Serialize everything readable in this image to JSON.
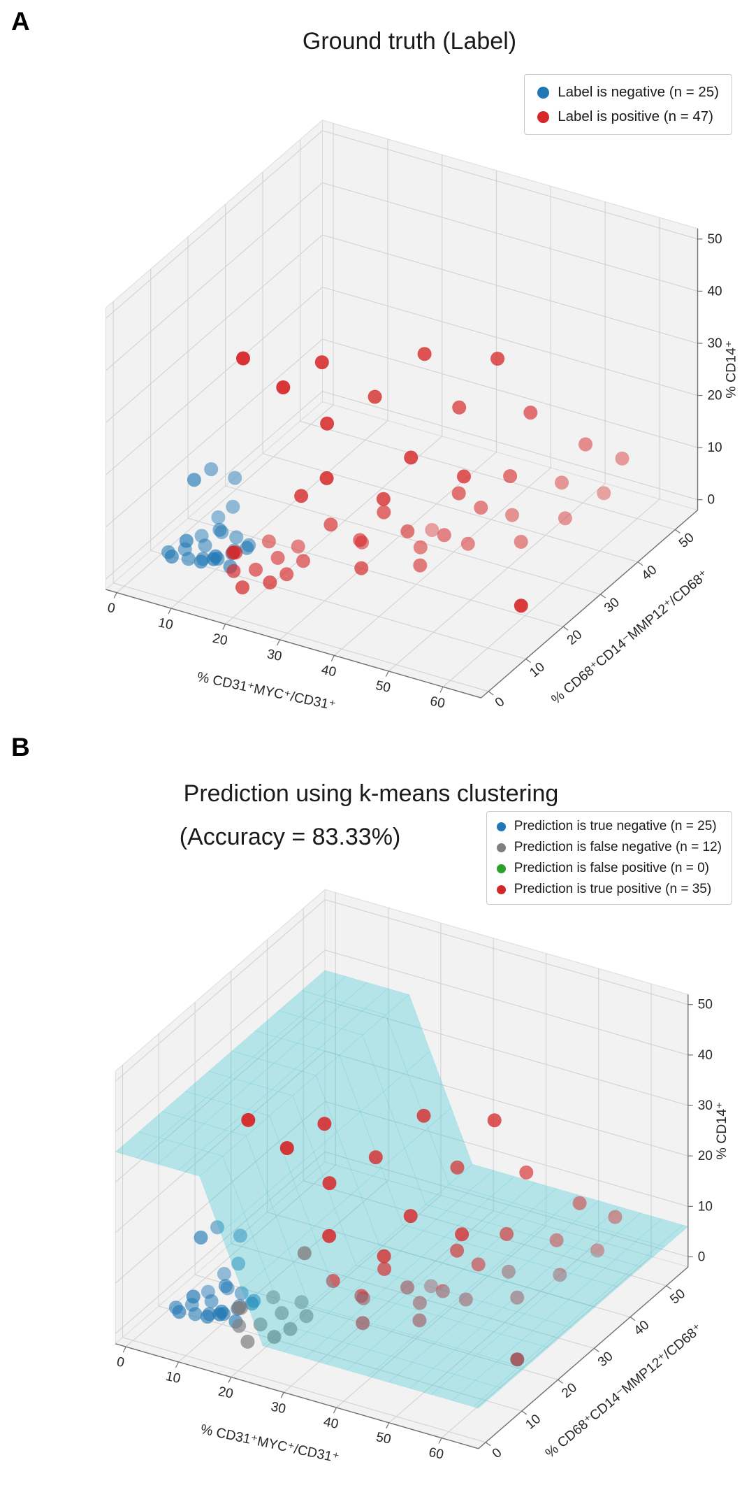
{
  "figure": {
    "background": "#ffffff"
  },
  "panels": [
    {
      "panel_label": "A",
      "title": "Ground truth (Label)",
      "legend": [
        {
          "label": "Label is negative (n = 25)",
          "color": "#1f77b4"
        },
        {
          "label": "Label is positive (n = 47)",
          "color": "#d62728"
        }
      ]
    },
    {
      "panel_label": "B",
      "title": "Prediction using k-means clustering",
      "subtitle": "(Accuracy = 83.33%)",
      "legend": [
        {
          "label": "Prediction is true negative (n = 25)",
          "color": "#1f77b4"
        },
        {
          "label": "Prediction is false negative (n = 12)",
          "color": "#7f7f7f"
        },
        {
          "label": "Prediction is false positive (n = 0)",
          "color": "#2ca02c"
        },
        {
          "label": "Prediction is true positive (n = 35)",
          "color": "#d62728"
        }
      ]
    }
  ],
  "chart_data": {
    "type": "scatter",
    "projection": "3d",
    "axes": {
      "x": {
        "label": "% CD31⁺MYC⁺/CD31⁺",
        "range": [
          -2,
          67
        ],
        "ticks": [
          0,
          10,
          20,
          30,
          40,
          50,
          60
        ]
      },
      "y": {
        "label": "% CD68⁺CD14⁻MMP12⁺/CD68⁺",
        "range": [
          -2,
          56
        ],
        "ticks": [
          0,
          10,
          20,
          30,
          40,
          50
        ]
      },
      "z": {
        "label": "% CD14⁺",
        "range": [
          -2,
          52
        ],
        "ticks": [
          0,
          10,
          20,
          30,
          40,
          50
        ]
      }
    },
    "categories": {
      "neg": "Label is negative",
      "pos": "Label is positive",
      "tn": "Prediction is true negative",
      "fn": "Prediction is false negative",
      "fp": "Prediction is false positive",
      "tp": "Prediction is true positive"
    },
    "counts": {
      "neg": 25,
      "pos": 47,
      "tn": 25,
      "fn": 12,
      "fp": 0,
      "tp": 35
    },
    "accuracy": "83.33%",
    "points": [
      [
        4,
        6,
        2,
        "neg",
        "tn"
      ],
      [
        5,
        9,
        1,
        "neg",
        "tn"
      ],
      [
        6,
        4,
        3,
        "neg",
        "tn"
      ],
      [
        6,
        12,
        2,
        "neg",
        "tn"
      ],
      [
        7,
        7,
        1,
        "neg",
        "tn"
      ],
      [
        7,
        15,
        4,
        "neg",
        "tn"
      ],
      [
        8,
        5,
        6,
        "neg",
        "tn"
      ],
      [
        8,
        10,
        2,
        "neg",
        "tn"
      ],
      [
        9,
        8,
        1,
        "neg",
        "tn"
      ],
      [
        9,
        13,
        3,
        "neg",
        "tn"
      ],
      [
        10,
        6,
        2,
        "neg",
        "tn"
      ],
      [
        10,
        11,
        5,
        "neg",
        "tn"
      ],
      [
        11,
        9,
        1,
        "neg",
        "tn"
      ],
      [
        11,
        14,
        2,
        "neg",
        "tn"
      ],
      [
        12,
        7,
        3,
        "neg",
        "tn"
      ],
      [
        12,
        12,
        1,
        "neg",
        "tn"
      ],
      [
        13,
        10,
        2,
        "neg",
        "tn"
      ],
      [
        13,
        5,
        4,
        "neg",
        "tn"
      ],
      [
        14,
        8,
        1,
        "neg",
        "tn"
      ],
      [
        14,
        13,
        2,
        "neg",
        "tn"
      ],
      [
        5,
        16,
        12,
        "neg",
        "tn"
      ],
      [
        6,
        10,
        14,
        "neg",
        "tn"
      ],
      [
        8,
        18,
        10,
        "neg",
        "tn"
      ],
      [
        15,
        11,
        3,
        "neg",
        "tn"
      ],
      [
        9,
        16,
        6,
        "neg",
        "tn"
      ],
      [
        15,
        10,
        40,
        "pos",
        "tp"
      ],
      [
        24,
        18,
        37,
        "pos",
        "tp"
      ],
      [
        21,
        12,
        35,
        "pos",
        "tp"
      ],
      [
        36,
        28,
        36,
        "pos",
        "tp"
      ],
      [
        46,
        33,
        35,
        "pos",
        "tp"
      ],
      [
        31,
        22,
        30,
        "pos",
        "tp"
      ],
      [
        27,
        15,
        28,
        "pos",
        "tp"
      ],
      [
        41,
        30,
        26,
        "pos",
        "tp"
      ],
      [
        50,
        36,
        24,
        "pos",
        "tp"
      ],
      [
        39,
        20,
        22,
        "pos",
        "tp"
      ],
      [
        29,
        12,
        20,
        "pos",
        "tp"
      ],
      [
        46,
        24,
        18,
        "pos",
        "tp"
      ],
      [
        56,
        42,
        16,
        "pos",
        "tp"
      ],
      [
        36,
        17,
        15,
        "pos",
        "tp"
      ],
      [
        49,
        32,
        14,
        "pos",
        "tp"
      ],
      [
        60,
        46,
        12,
        "pos",
        "tp"
      ],
      [
        43,
        27,
        12,
        "pos",
        "tp"
      ],
      [
        34,
        20,
        10,
        "pos",
        "tp"
      ],
      [
        53,
        40,
        9,
        "pos",
        "tp"
      ],
      [
        27,
        16,
        8,
        "pos",
        "tp"
      ],
      [
        45,
        30,
        8,
        "pos",
        "tp"
      ],
      [
        58,
        44,
        6,
        "pos",
        "tp"
      ],
      [
        37,
        22,
        6,
        "pos",
        "tp"
      ],
      [
        31,
        18,
        5,
        "pos",
        "tp"
      ],
      [
        48,
        34,
        5,
        "pos",
        "tp"
      ],
      [
        41,
        26,
        4,
        "pos",
        "tp"
      ],
      [
        55,
        38,
        4,
        "pos",
        "tp"
      ],
      [
        34,
        14,
        3,
        "pos",
        "tp"
      ],
      [
        30,
        20,
        3,
        "pos",
        "tp"
      ],
      [
        44,
        28,
        2,
        "pos",
        "tp"
      ],
      [
        38,
        24,
        2,
        "pos",
        "tp"
      ],
      [
        51,
        32,
        2,
        "pos",
        "tp"
      ],
      [
        62,
        16,
        3,
        "pos",
        "tp"
      ],
      [
        36,
        30,
        1,
        "pos",
        "tp"
      ],
      [
        40,
        21,
        1,
        "pos",
        "tp"
      ],
      [
        16,
        6,
        2,
        "pos",
        "fn"
      ],
      [
        18,
        9,
        1,
        "pos",
        "fn"
      ],
      [
        20,
        12,
        2,
        "pos",
        "fn"
      ],
      [
        22,
        7,
        1,
        "pos",
        "fn"
      ],
      [
        17,
        14,
        3,
        "pos",
        "fn"
      ],
      [
        19,
        4,
        1,
        "pos",
        "fn"
      ],
      [
        21,
        16,
        2,
        "pos",
        "fn"
      ],
      [
        23,
        10,
        1,
        "pos",
        "fn"
      ],
      [
        15,
        8,
        4,
        "pos",
        "fn"
      ],
      [
        24,
        13,
        2,
        "pos",
        "fn"
      ],
      [
        18,
        3,
        8,
        "pos",
        "fn"
      ],
      [
        25,
        11,
        16,
        "pos",
        "fn"
      ]
    ],
    "views": [
      {
        "name": "Ground truth (Label)",
        "color_field": 3,
        "colors": {
          "neg": "#1f77b4",
          "pos": "#d62728"
        }
      },
      {
        "name": "Prediction using k-means clustering (Accuracy = 83.33%)",
        "color_field": 4,
        "colors": {
          "tn": "#1f77b4",
          "fn": "#7f7f7f",
          "fp": "#2ca02c",
          "tp": "#d62728"
        },
        "surface": {
          "kind": "k-means decision boundary",
          "color": "#17becf",
          "opacity": 0.28,
          "z_high": 36,
          "z_low": 6,
          "fold_x_start": 14,
          "fold_x_end": 26
        }
      }
    ]
  }
}
